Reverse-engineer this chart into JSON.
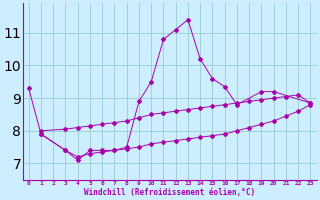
{
  "xlabel": "Windchill (Refroidissement éolien,°C)",
  "bg_color": "#cceeff",
  "line_color": "#aa00aa",
  "grid_color": "#99cccc",
  "yticks": [
    7,
    8,
    9,
    10,
    11
  ],
  "ylim": [
    6.5,
    11.9
  ],
  "xlim": [
    -0.5,
    23.5
  ],
  "xticks": [
    0,
    1,
    2,
    3,
    4,
    5,
    6,
    7,
    8,
    9,
    10,
    11,
    12,
    13,
    14,
    15,
    16,
    17,
    18,
    19,
    20,
    21,
    22,
    23
  ],
  "peak_x": [
    0,
    1,
    3,
    4,
    5,
    6,
    7,
    8,
    9,
    10,
    11,
    12,
    13,
    14,
    15,
    16,
    17,
    19,
    20,
    23
  ],
  "peak_y": [
    9.3,
    7.9,
    7.4,
    7.1,
    7.4,
    7.4,
    7.4,
    7.5,
    8.9,
    9.5,
    10.8,
    11.1,
    11.4,
    10.2,
    9.6,
    9.35,
    8.8,
    9.2,
    9.2,
    8.85
  ],
  "lower_x": [
    1,
    3,
    4,
    5,
    6,
    7,
    8,
    9,
    10,
    11,
    12,
    13,
    14,
    15,
    16,
    17,
    18,
    19,
    20,
    21,
    22,
    23
  ],
  "lower_y": [
    7.9,
    7.4,
    7.2,
    7.3,
    7.35,
    7.4,
    7.45,
    7.5,
    7.6,
    7.65,
    7.7,
    7.75,
    7.8,
    7.85,
    7.9,
    8.0,
    8.1,
    8.2,
    8.3,
    8.45,
    8.6,
    8.8
  ],
  "upper_x": [
    1,
    3,
    4,
    5,
    6,
    7,
    8,
    9,
    10,
    11,
    12,
    13,
    14,
    15,
    16,
    17,
    18,
    19,
    20,
    21,
    22,
    23
  ],
  "upper_y": [
    8.0,
    8.05,
    8.1,
    8.15,
    8.2,
    8.25,
    8.3,
    8.4,
    8.5,
    8.55,
    8.6,
    8.65,
    8.7,
    8.75,
    8.8,
    8.85,
    8.9,
    8.95,
    9.0,
    9.05,
    9.1,
    8.85
  ],
  "figsize": [
    3.2,
    2.0
  ],
  "dpi": 100
}
